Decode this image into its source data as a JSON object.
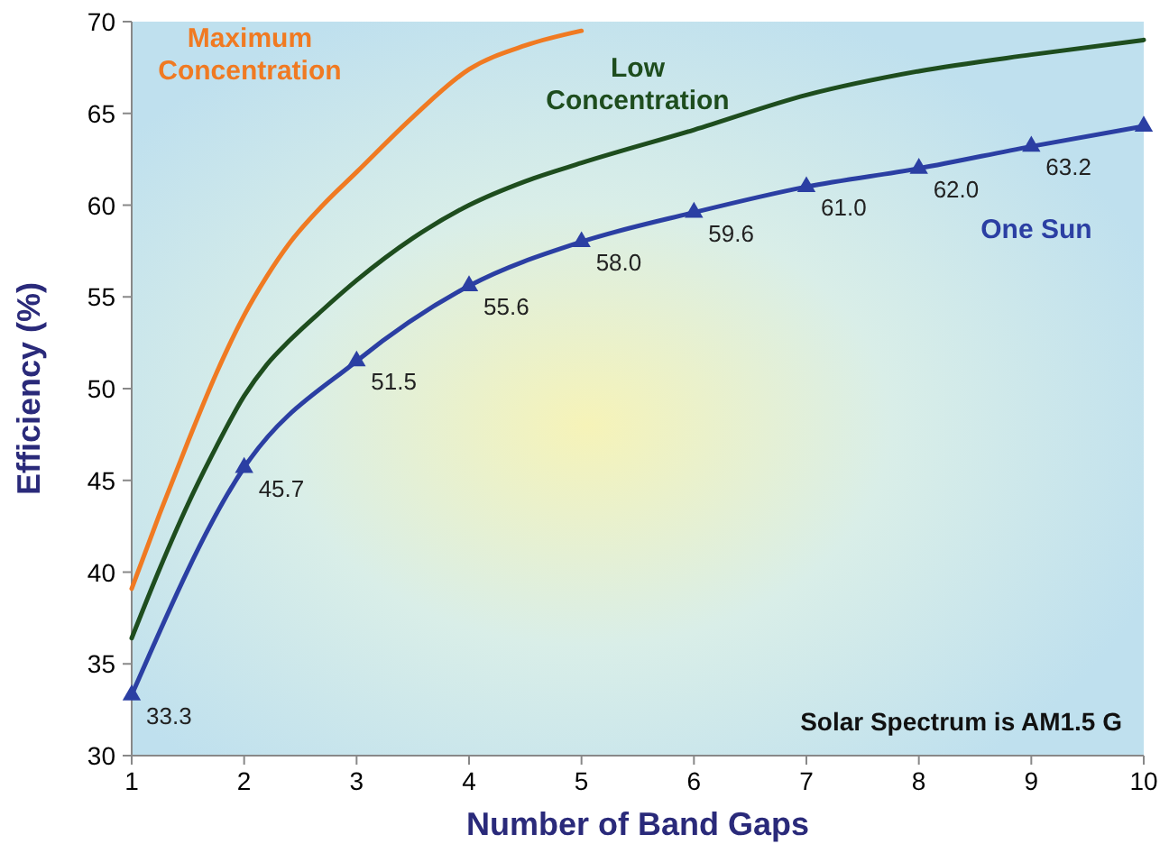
{
  "chart_data": {
    "type": "line",
    "xlabel": "Number of Band Gaps",
    "ylabel": "Efficiency (%)",
    "xlim": [
      1,
      10
    ],
    "ylim": [
      30,
      70
    ],
    "xticks": [
      1,
      2,
      3,
      4,
      5,
      6,
      7,
      8,
      9,
      10
    ],
    "yticks": [
      30,
      35,
      40,
      45,
      50,
      55,
      60,
      65,
      70
    ],
    "grid": false,
    "line_style": "solid",
    "series": [
      {
        "name": "Maximum Concentration",
        "color": "#f07a22",
        "marker": "none",
        "x": [
          1,
          1.25,
          1.5,
          1.75,
          2,
          2.2,
          2.4,
          2.7,
          3,
          3.5,
          4,
          4.5,
          5
        ],
        "values": [
          39.1,
          43.2,
          47.1,
          50.8,
          54,
          56.1,
          57.9,
          60,
          61.8,
          64.8,
          67.4,
          68.7,
          69.5
        ]
      },
      {
        "name": "Low Concentration",
        "color": "#1e4d1e",
        "marker": "none",
        "x": [
          1,
          1.25,
          1.5,
          1.75,
          2,
          2.2,
          2.4,
          2.7,
          3,
          3.5,
          4,
          4.5,
          5,
          6,
          7,
          8,
          9,
          10
        ],
        "values": [
          36.4,
          40.2,
          43.7,
          46.8,
          49.6,
          51.3,
          52.6,
          54.3,
          55.9,
          58.2,
          60,
          61.3,
          62.3,
          64.1,
          66,
          67.3,
          68.2,
          69
        ]
      },
      {
        "name": "One Sun",
        "color": "#2b3fa3",
        "marker": "triangle",
        "x": [
          1,
          2,
          3,
          4,
          5,
          6,
          7,
          8,
          9,
          10
        ],
        "values": [
          33.3,
          45.7,
          51.5,
          55.6,
          58.0,
          59.6,
          61.0,
          62.0,
          63.2,
          64.3
        ],
        "value_labels": [
          "33.3",
          "45.7",
          "51.5",
          "55.6",
          "58.0",
          "59.6",
          "61.0",
          "62.0",
          "63.2",
          null
        ]
      }
    ],
    "annotations": [
      "Solar Spectrum is AM1.5 G"
    ]
  }
}
